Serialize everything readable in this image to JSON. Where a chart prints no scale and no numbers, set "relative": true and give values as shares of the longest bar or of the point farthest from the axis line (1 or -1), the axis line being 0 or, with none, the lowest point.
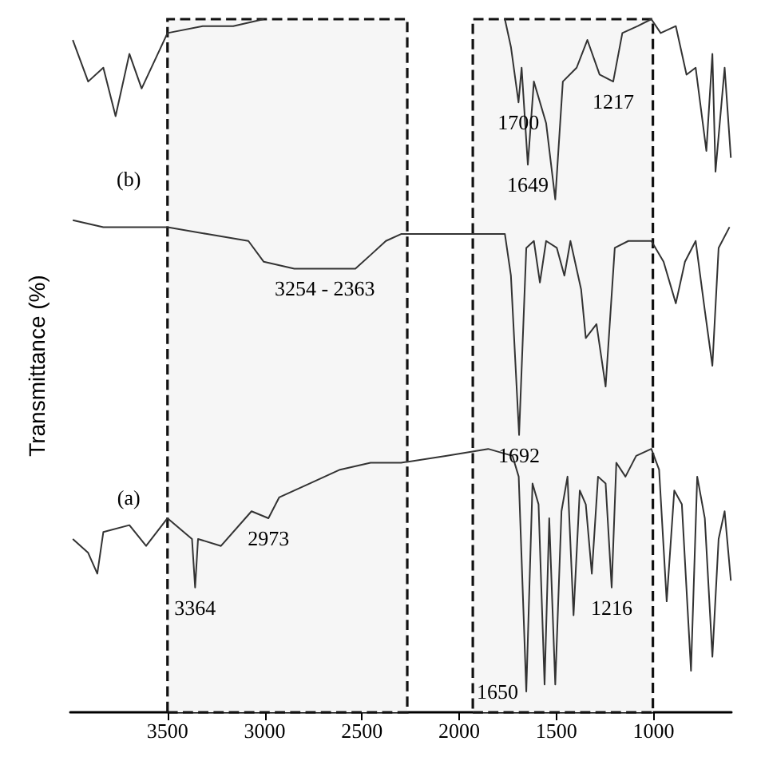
{
  "chart_data": {
    "type": "line",
    "ylabel": "Transmittance (%)",
    "relative": true,
    "xlim": [
      4000,
      600
    ],
    "xticks": [
      3500,
      3000,
      2500,
      2000,
      1500,
      1000
    ],
    "grid": false,
    "legend": false,
    "marker": "none",
    "line_style": "solid",
    "series": [
      {
        "name": null,
        "color": "#333333",
        "x": [
          3987,
          3908,
          3830,
          3767,
          3696,
          3633,
          3500,
          3319,
          3162,
          3005,
          2500,
          2000,
          1765,
          1734,
          1695,
          1679,
          1647,
          1616,
          1553,
          1506,
          1467,
          1396,
          1341,
          1278,
          1208,
          1161,
          1082,
          1012,
          964,
          886,
          831,
          784,
          729,
          698,
          682,
          635,
          603
        ],
        "values": [
          0.97,
          0.91,
          0.93,
          0.86,
          0.95,
          0.9,
          0.98,
          0.99,
          0.99,
          1.0,
          null,
          null,
          1.0,
          0.96,
          0.88,
          0.93,
          0.79,
          0.91,
          0.85,
          0.74,
          0.91,
          0.93,
          0.97,
          0.92,
          0.91,
          0.98,
          0.99,
          1.0,
          0.98,
          0.99,
          0.92,
          0.93,
          0.81,
          0.95,
          0.78,
          0.93,
          0.8
        ]
      },
      {
        "name": "(b)",
        "color": "#333333",
        "x": [
          3987,
          3830,
          3500,
          3296,
          3084,
          3005,
          2848,
          2691,
          2534,
          2455,
          2377,
          2299,
          2063,
          1765,
          1734,
          1692,
          1655,
          1616,
          1585,
          1553,
          1498,
          1459,
          1428,
          1373,
          1349,
          1294,
          1247,
          1200,
          1130,
          1012,
          949,
          886,
          839,
          784,
          737,
          698,
          666,
          610
        ],
        "values": [
          0.71,
          0.7,
          0.7,
          0.69,
          0.68,
          0.65,
          0.64,
          0.64,
          0.64,
          0.66,
          0.68,
          0.69,
          0.69,
          0.69,
          0.63,
          0.4,
          0.67,
          0.68,
          0.62,
          0.68,
          0.67,
          0.63,
          0.68,
          0.61,
          0.54,
          0.56,
          0.47,
          0.67,
          0.68,
          0.68,
          0.65,
          0.59,
          0.65,
          0.68,
          0.58,
          0.5,
          0.67,
          0.7
        ]
      },
      {
        "name": "(a)",
        "color": "#333333",
        "x": [
          3987,
          3908,
          3861,
          3830,
          3696,
          3610,
          3500,
          3374,
          3358,
          3343,
          3225,
          3068,
          2981,
          2926,
          2770,
          2613,
          2456,
          2299,
          2063,
          1851,
          1726,
          1694,
          1655,
          1623,
          1592,
          1561,
          1537,
          1506,
          1474,
          1443,
          1412,
          1380,
          1349,
          1318,
          1286,
          1247,
          1216,
          1192,
          1145,
          1090,
          1012,
          972,
          933,
          894,
          855,
          808,
          776,
          737,
          698,
          666,
          635,
          603
        ],
        "values": [
          0.25,
          0.23,
          0.2,
          0.26,
          0.27,
          0.24,
          0.28,
          0.25,
          0.18,
          0.25,
          0.24,
          0.29,
          0.28,
          0.31,
          0.33,
          0.35,
          0.36,
          0.36,
          0.37,
          0.38,
          0.37,
          0.34,
          0.03,
          0.33,
          0.3,
          0.04,
          0.28,
          0.04,
          0.29,
          0.34,
          0.14,
          0.32,
          0.3,
          0.2,
          0.34,
          0.33,
          0.18,
          0.36,
          0.34,
          0.37,
          0.38,
          0.35,
          0.16,
          0.32,
          0.3,
          0.06,
          0.34,
          0.28,
          0.08,
          0.25,
          0.29,
          0.19
        ]
      }
    ],
    "bands": [
      {
        "axis": "x",
        "from": 3500,
        "to": 2267,
        "color": "#f6f6f6"
      },
      {
        "axis": "x",
        "from": 1930,
        "to": 1004,
        "color": "#f6f6f6"
      }
    ],
    "annotations": [
      {
        "text": "1700",
        "x": 1695,
        "y": 0.88
      },
      {
        "text": "1649",
        "x": 1647,
        "y": 0.79
      },
      {
        "text": "1217",
        "x": 1208,
        "y": 0.91
      },
      {
        "text": "3254 - 2363",
        "x": 2691,
        "y": 0.64
      },
      {
        "text": "1692",
        "x": 1692,
        "y": 0.4
      },
      {
        "text": "2973",
        "x": 2981,
        "y": 0.28
      },
      {
        "text": "3364",
        "x": 3358,
        "y": 0.18
      },
      {
        "text": "1216",
        "x": 1216,
        "y": 0.18
      },
      {
        "text": "1650",
        "x": 1655,
        "y": 0.03
      }
    ]
  }
}
